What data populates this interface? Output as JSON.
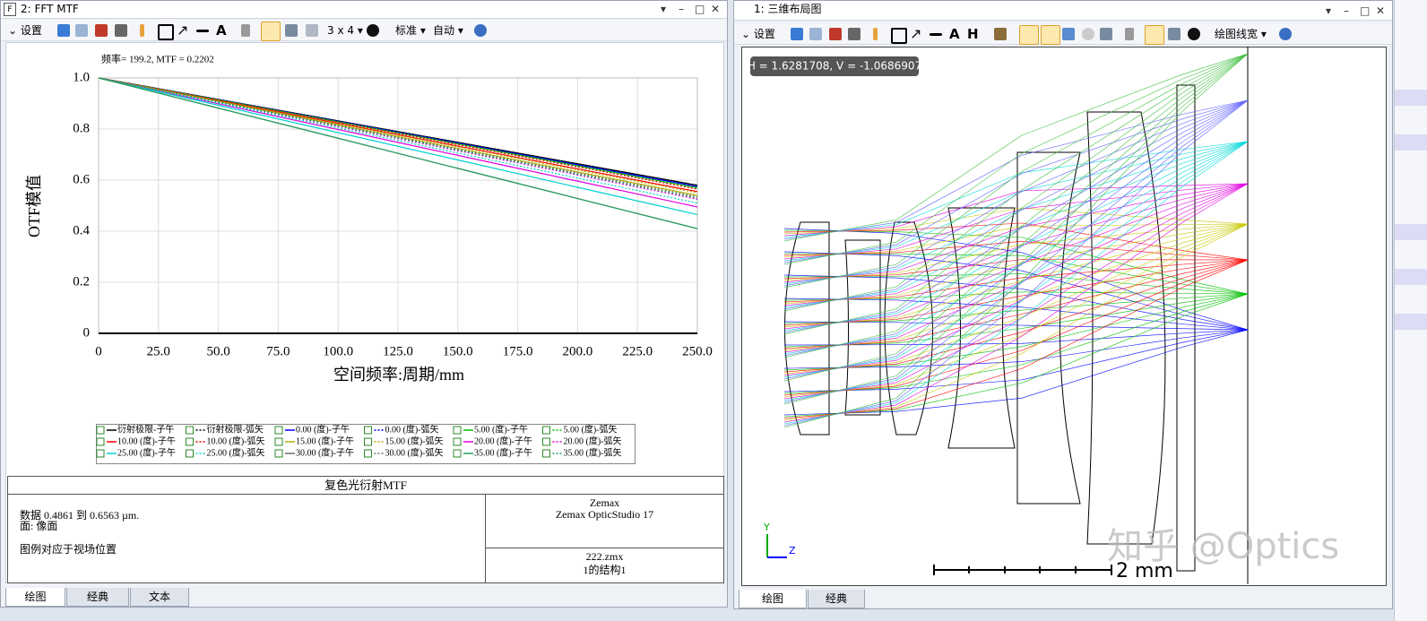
{
  "left_window": {
    "title": "2: FFT MTF",
    "toolbar": {
      "settings": "设置",
      "layout": "3 x 4",
      "standard": "标准",
      "auto": "自动"
    },
    "info": {
      "heading": "复色光衍射MTF",
      "data_range": "数据 0.4861 到 0.6563 µm.",
      "surface": "面: 像面",
      "legend_note": "图例对应于视场位置",
      "company": "Zemax",
      "product": "Zemax OpticStudio 17",
      "file": "222.zmx",
      "config": "1的结构1"
    },
    "tabs": [
      "绘图",
      "经典",
      "文本"
    ]
  },
  "chart_data": {
    "type": "line",
    "annotation": "频率= 199.2, MTF = 0.2202",
    "y_label": "OTF模值",
    "x_label": "空间频率:周期/mm",
    "x": [
      0,
      50,
      100,
      150,
      200,
      250
    ],
    "xlim": [
      0,
      250
    ],
    "xticks": [
      0,
      {
        "value": 25,
        "label": "25.0"
      },
      {
        "value": 50,
        "label": "50.0"
      },
      {
        "value": 75,
        "label": "75.0"
      },
      {
        "value": 100,
        "label": "100.0"
      },
      {
        "value": 125,
        "label": "125.0"
      },
      {
        "value": 150,
        "label": "150.0"
      },
      {
        "value": 175,
        "label": "175.0"
      },
      {
        "value": 200,
        "label": "200.0"
      },
      {
        "value": 225,
        "label": "225.0"
      },
      {
        "value": 250,
        "label": "250.0"
      }
    ],
    "ylim": [
      0,
      1
    ],
    "yticks": [
      0,
      0.2,
      0.4,
      0.6,
      0.8,
      {
        "value": 1,
        "label": "1.0"
      }
    ],
    "grid": true,
    "series": [
      {
        "name": "衍射极限-子午",
        "color": "#000000",
        "line_style": "solid",
        "values": [
          1,
          0.916,
          0.832,
          0.748,
          0.664,
          0.58
        ]
      },
      {
        "name": "衍射极限-弧矢",
        "color": "#000000",
        "line_style": "dotted",
        "values": [
          1,
          0.916,
          0.832,
          0.748,
          0.664,
          0.58
        ]
      },
      {
        "name": "0.00 (度)-子午",
        "color": "#0000ff",
        "line_style": "solid",
        "values": [
          1,
          0.915,
          0.83,
          0.745,
          0.66,
          0.575
        ]
      },
      {
        "name": "0.00 (度)-弧矢",
        "color": "#0000ff",
        "line_style": "dotted",
        "values": [
          1,
          0.915,
          0.83,
          0.745,
          0.66,
          0.575
        ]
      },
      {
        "name": "5.00 (度)-子午",
        "color": "#00c000",
        "line_style": "solid",
        "values": [
          1,
          0.914,
          0.828,
          0.742,
          0.656,
          0.57
        ]
      },
      {
        "name": "5.00 (度)-弧矢",
        "color": "#00c000",
        "line_style": "dotted",
        "values": [
          1,
          0.913,
          0.826,
          0.739,
          0.652,
          0.565
        ]
      },
      {
        "name": "10.00 (度)-子午",
        "color": "#ff0000",
        "line_style": "solid",
        "values": [
          1,
          0.911,
          0.822,
          0.733,
          0.644,
          0.555
        ]
      },
      {
        "name": "10.00 (度)-弧矢",
        "color": "#ff0000",
        "line_style": "dotted",
        "values": [
          1,
          0.913,
          0.826,
          0.739,
          0.652,
          0.565
        ]
      },
      {
        "name": "15.00 (度)-子午",
        "color": "#b0b000",
        "line_style": "solid",
        "values": [
          1,
          0.908,
          0.816,
          0.724,
          0.632,
          0.54
        ]
      },
      {
        "name": "15.00 (度)-弧矢",
        "color": "#b0b000",
        "line_style": "dotted",
        "values": [
          1,
          0.91,
          0.82,
          0.73,
          0.64,
          0.55
        ]
      },
      {
        "name": "20.00 (度)-子午",
        "color": "#e000e0",
        "line_style": "solid",
        "values": [
          1,
          0.899,
          0.798,
          0.697,
          0.596,
          0.495
        ]
      },
      {
        "name": "20.00 (度)-弧矢",
        "color": "#e000e0",
        "line_style": "dotted",
        "values": [
          1,
          0.905,
          0.81,
          0.715,
          0.62,
          0.525
        ]
      },
      {
        "name": "25.00 (度)-子午",
        "color": "#00d0d0",
        "line_style": "solid",
        "values": [
          1,
          0.893,
          0.786,
          0.679,
          0.572,
          0.465
        ]
      },
      {
        "name": "25.00 (度)-弧矢",
        "color": "#00d0d0",
        "line_style": "dotted",
        "values": [
          1,
          0.902,
          0.804,
          0.706,
          0.608,
          0.51
        ]
      },
      {
        "name": "30.00 (度)-子午",
        "color": "#707070",
        "line_style": "solid",
        "values": [
          1,
          0.882,
          0.764,
          0.646,
          0.528,
          0.41
        ]
      },
      {
        "name": "30.00 (度)-弧矢",
        "color": "#707070",
        "line_style": "dotted",
        "values": [
          1,
          0.907,
          0.814,
          0.721,
          0.628,
          0.535
        ]
      },
      {
        "name": "35.00 (度)-子午",
        "color": "#20a060",
        "line_style": "solid",
        "values": [
          1,
          0.882,
          0.764,
          0.646,
          0.528,
          0.41
        ]
      },
      {
        "name": "35.00 (度)-弧矢",
        "color": "#20a060",
        "line_style": "dotted",
        "values": [
          1,
          0.906,
          0.812,
          0.718,
          0.624,
          0.53
        ]
      }
    ]
  },
  "right_window": {
    "title": "1: 三维布局图",
    "toolbar": {
      "settings": "设置",
      "line_width": "绘图线宽"
    },
    "cursor": "H = 1.6281708, V = -1.0686907",
    "scale_bar": "2 mm",
    "axis_y": "Y",
    "axis_z": "Z",
    "tabs": [
      "绘图",
      "经典"
    ]
  },
  "watermark": "知乎 @Optics"
}
